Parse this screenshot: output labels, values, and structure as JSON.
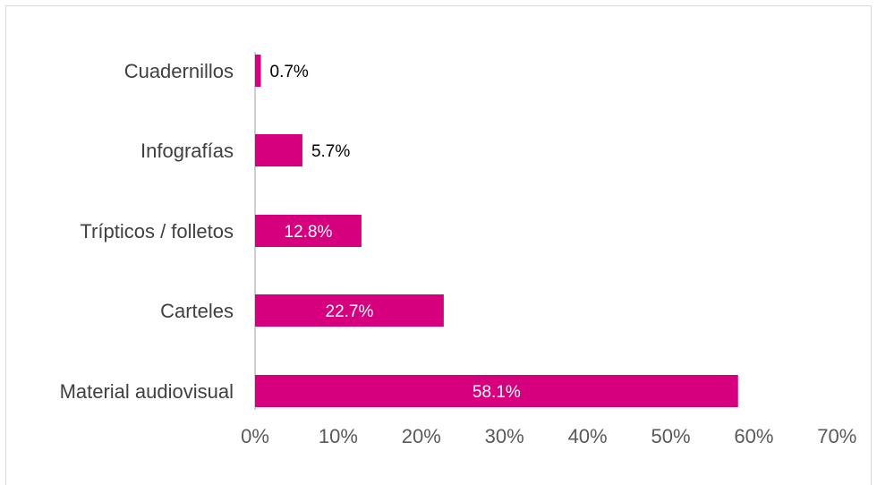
{
  "colors": {
    "bar": "#d6007e",
    "axis_line": "#bfbfbf",
    "frame": "#d9d9d9",
    "label_inside": "#ffffff",
    "label_outside": "#000000"
  },
  "chart_data": {
    "type": "bar",
    "orientation": "horizontal",
    "title": "",
    "xlabel": "",
    "ylabel": "",
    "categories": [
      "Cuadernillos",
      "Infografías",
      "Trípticos / folletos",
      "Carteles",
      "Material audiovisual"
    ],
    "values": [
      0.7,
      5.7,
      12.8,
      22.7,
      58.1
    ],
    "data_labels": [
      "0.7%",
      "5.7%",
      "12.8%",
      "22.7%",
      "58.1%"
    ],
    "xlim": [
      0,
      70
    ],
    "x_ticks": [
      0,
      10,
      20,
      30,
      40,
      50,
      60,
      70
    ],
    "x_tick_labels": [
      "0%",
      "10%",
      "20%",
      "30%",
      "40%",
      "50%",
      "60%",
      "70%"
    ],
    "grid": false,
    "legend": "none"
  }
}
